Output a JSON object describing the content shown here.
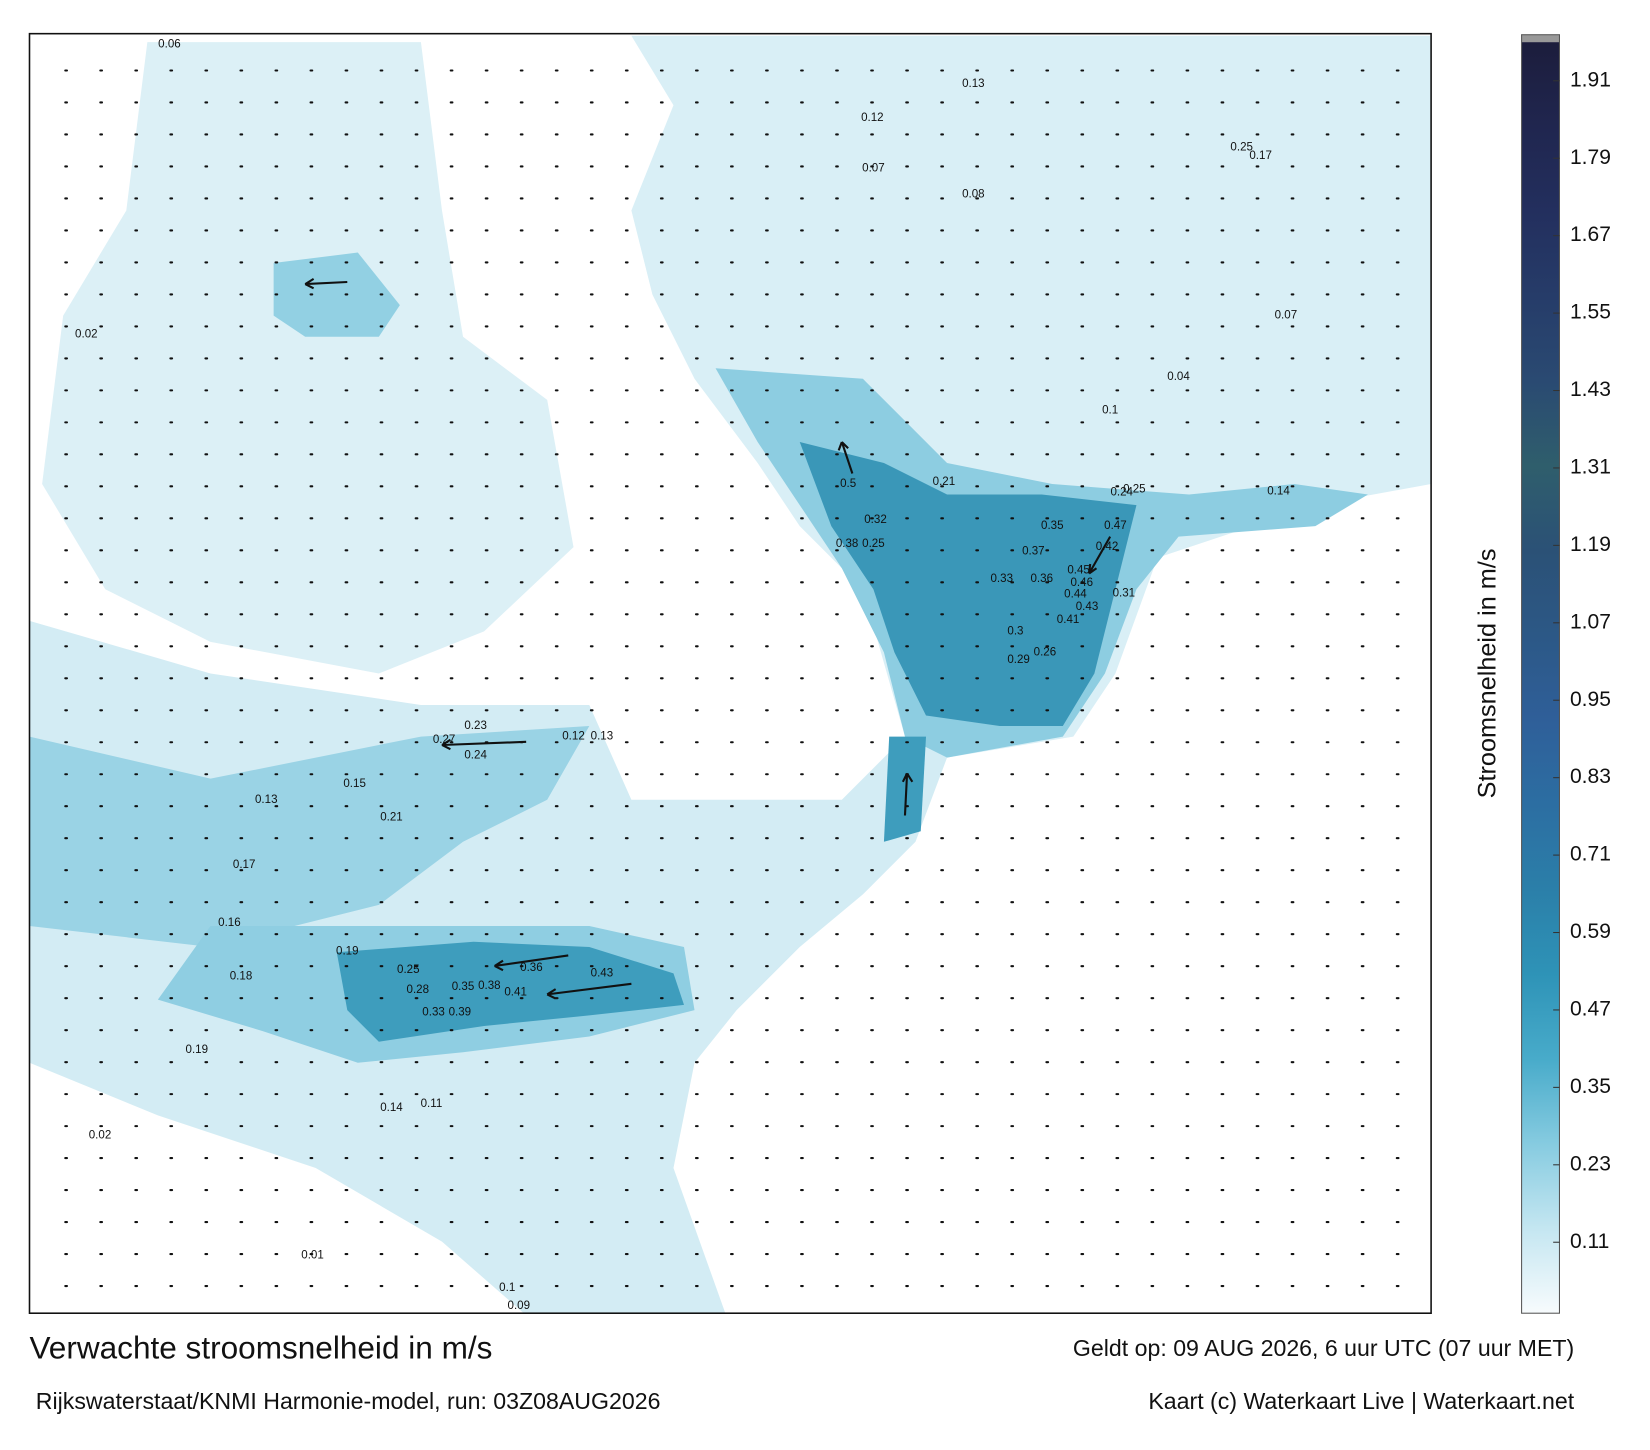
{
  "map": {
    "title": "Verwachte stroomsnelheid in m/s",
    "subtitle": "Rijkswaterstaat/KNMI Harmonie-model, run: 03Z08AUG2026",
    "valid_time": "Geldt op: 09 AUG 2026, 6 uur UTC (07 uur MET)",
    "credit": "Kaart (c) Waterkaart Live | Waterkaart.net",
    "colorbar": {
      "label": "Stroomsnelheid in m/s",
      "clim": [
        0,
        1.97
      ],
      "ticks": [
        0.11,
        0.23,
        0.35,
        0.47,
        0.59,
        0.71,
        0.83,
        0.95,
        1.07,
        1.19,
        1.31,
        1.43,
        1.55,
        1.67,
        1.79,
        1.91
      ],
      "colors": [
        "#f7fbfd",
        "#c4e6f1",
        "#86cbe0",
        "#48abca",
        "#2e93b7",
        "#2b7fa9",
        "#2c6ea2",
        "#2f5f99",
        "#2c5886",
        "#2b5176",
        "#2f5e6c",
        "#2a4a72",
        "#263c69",
        "#232f5e",
        "#20264f",
        "#1c1d3c"
      ]
    },
    "speed_labels": [
      0.36,
      0.43,
      0.41,
      0.35,
      0.38,
      0.25,
      0.28,
      0.33,
      0.39,
      0.27,
      0.24,
      0.23,
      0.12,
      0.13,
      0.42,
      0.47,
      0.35,
      0.36,
      0.37,
      0.33,
      0.45,
      0.46,
      0.44,
      0.43,
      0.41,
      0.31,
      0.3,
      0.29,
      0.26,
      0.5,
      0.32,
      0.38,
      0.25,
      0.21,
      0.24,
      0.25,
      0.17,
      0.25,
      0.14,
      0.13,
      0.15,
      0.21,
      0.17,
      0.16,
      0.19,
      0.18,
      0.19,
      0.14,
      0.11,
      0.09,
      0.1,
      0.01,
      0.02,
      0.06,
      0.13,
      0.12,
      0.08,
      0.07,
      0.04,
      0.1,
      0.07,
      0.02
    ]
  }
}
